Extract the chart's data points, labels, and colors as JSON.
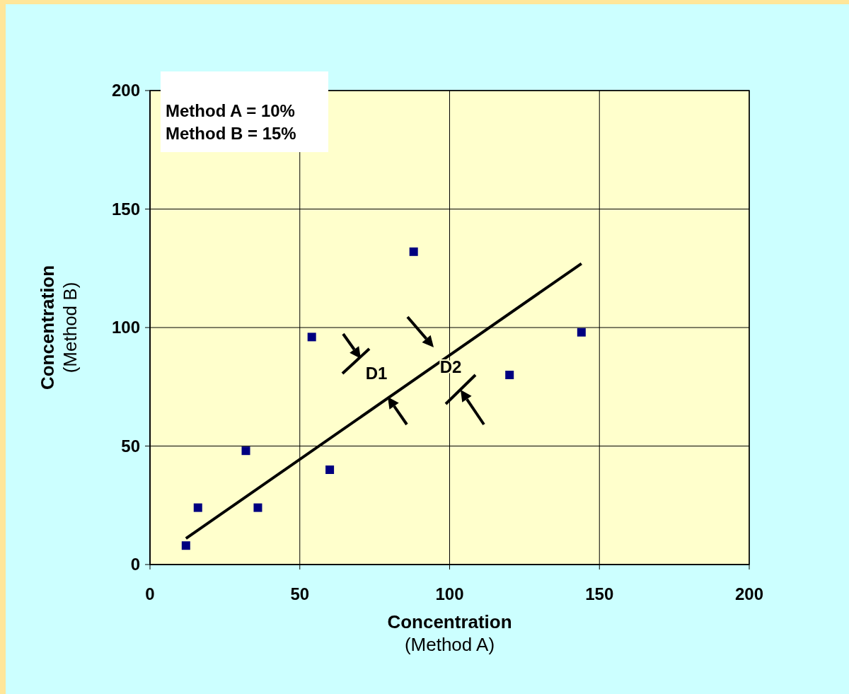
{
  "chart_data": {
    "type": "scatter",
    "xlabel": "Concentration\n(Method A)",
    "ylabel": "Concentration\n(Method B)",
    "xlim": [
      0,
      200
    ],
    "xticks": [
      0,
      50,
      100,
      150,
      200
    ],
    "ylim": [
      0,
      200
    ],
    "yticks": [
      0,
      50,
      100,
      150,
      200
    ],
    "grid": true,
    "marker": "square",
    "series": [
      {
        "color": "#000080",
        "x": [
          12,
          16,
          32,
          36,
          54,
          60,
          88,
          120,
          144
        ],
        "values": [
          8,
          24,
          48,
          24,
          96,
          40,
          132,
          80,
          98
        ]
      },
      {
        "type": "line",
        "color": "#000000",
        "marker": "none",
        "line_style": "solid",
        "x": [
          12,
          144
        ],
        "values": [
          11,
          127
        ]
      }
    ],
    "annotations": [
      "Method A = 10%",
      "Method B = 15%",
      "D1",
      "D2"
    ]
  }
}
